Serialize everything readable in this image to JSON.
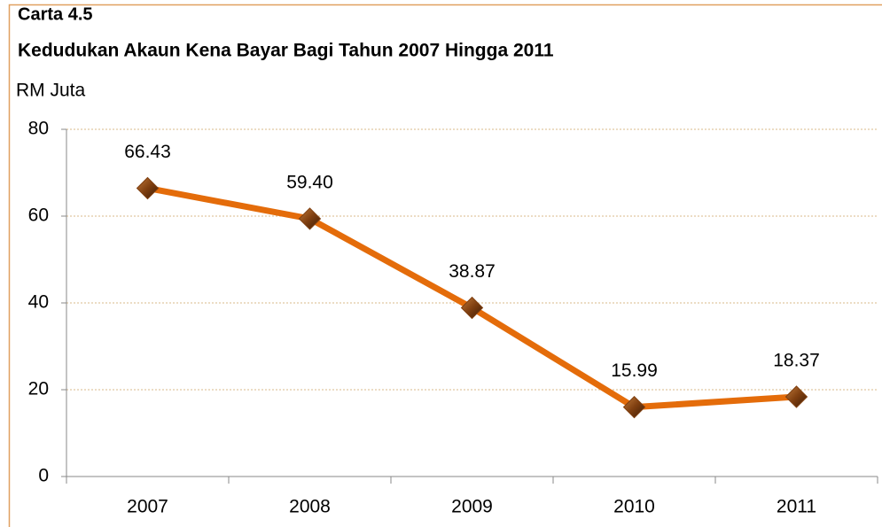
{
  "chart_data": {
    "type": "line",
    "title": "Carta 4.5",
    "subtitle": "Kedudukan Akaun Kena Bayar Bagi Tahun 2007 Hingga 2011",
    "y_label": "RM Juta",
    "categories": [
      "2007",
      "2008",
      "2009",
      "2010",
      "2011"
    ],
    "series": [
      {
        "color": "#e46c0a",
        "marker_color": "#7f3f10",
        "values": [
          66.43,
          59.4,
          38.87,
          15.99,
          18.37
        ],
        "value_labels": [
          "66.43",
          "59.40",
          "38.87",
          "15.99",
          "18.37"
        ]
      }
    ],
    "ylim": [
      0,
      80
    ],
    "yticks": [
      0,
      20,
      40,
      60,
      80
    ],
    "grid": true
  }
}
